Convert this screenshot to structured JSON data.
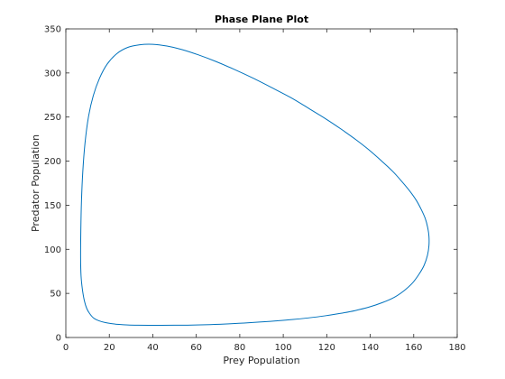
{
  "chart_data": {
    "type": "line",
    "title": "Phase Plane Plot",
    "xlabel": "Prey Population",
    "ylabel": "Predator Population",
    "xlim": [
      0,
      180
    ],
    "ylim": [
      0,
      350
    ],
    "xticks": [
      0,
      20,
      40,
      60,
      80,
      100,
      120,
      140,
      160,
      180
    ],
    "yticks": [
      0,
      50,
      100,
      150,
      200,
      250,
      300,
      350
    ],
    "grid": false,
    "box": true,
    "line_color": "#0072BD",
    "axes_color": "#262626",
    "series": [
      {
        "x": [
          6.8,
          7.0,
          7.6,
          8.5,
          9.6,
          11.0,
          12.8,
          15.2,
          18.0,
          21.0,
          24.5,
          28.5,
          33.0,
          38.0,
          44.0,
          50.0,
          56.0,
          62.0,
          68.5,
          75.0,
          82.0,
          89.0,
          96.5,
          104.0,
          111.5,
          119.0,
          126.0,
          133.0,
          139.5,
          145.5,
          151.0,
          155.5,
          159.5,
          162.5,
          164.8,
          166.3,
          167.0,
          167.0,
          166.4,
          165.3,
          163.5,
          161.2,
          158.2,
          154.5,
          150.3,
          145.3,
          139.8,
          133.6,
          126.8,
          119.5,
          111.6,
          103.5,
          95.0,
          86.2,
          77.5,
          69.0,
          61.0,
          53.5,
          46.5,
          40.0,
          34.0,
          28.5,
          23.5,
          19.0,
          15.5,
          12.6,
          10.4,
          8.8,
          7.8,
          7.2,
          6.9,
          6.8
        ],
        "y": [
          90,
          70,
          55,
          42,
          33,
          27,
          22,
          19,
          17,
          15.7,
          14.8,
          14.2,
          13.9,
          13.8,
          13.8,
          13.9,
          14.0,
          14.3,
          14.8,
          15.5,
          16.4,
          17.5,
          18.8,
          20.3,
          22.2,
          24.5,
          27.2,
          30.5,
          34.5,
          39.5,
          45.5,
          53.0,
          62.0,
          72.0,
          82.0,
          93.0,
          104.0,
          115.0,
          125.0,
          135.0,
          145.0,
          155.5,
          166.0,
          177.0,
          188.5,
          200.0,
          212.0,
          224.0,
          236.0,
          248.0,
          260.0,
          272.0,
          283.0,
          294.0,
          304.0,
          313.0,
          320.5,
          326.5,
          330.5,
          332.5,
          332.0,
          329.0,
          322.0,
          310.0,
          294.0,
          274.0,
          250.0,
          220.0,
          188.0,
          155.0,
          122.0,
          90
        ]
      }
    ]
  }
}
